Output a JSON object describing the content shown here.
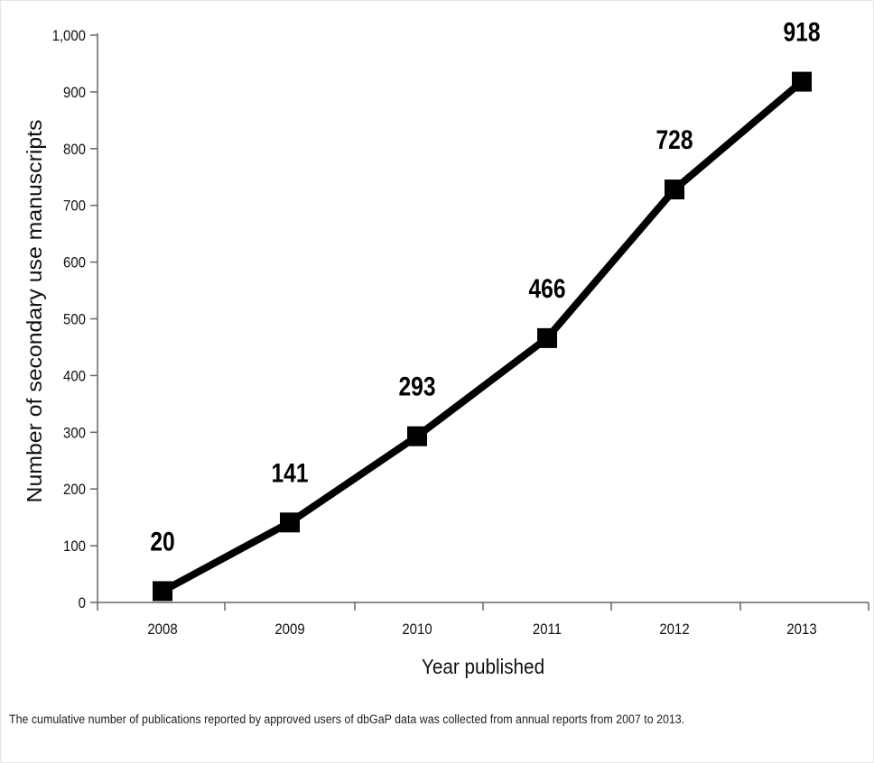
{
  "chart_data": {
    "type": "line",
    "x": [
      "2008",
      "2009",
      "2010",
      "2011",
      "2012",
      "2013"
    ],
    "values": [
      20,
      141,
      293,
      466,
      728,
      918
    ],
    "data_labels": [
      "20",
      "141",
      "293",
      "466",
      "728",
      "918"
    ],
    "xlabel": "Year published",
    "ylabel": "Number of secondary use manuscripts",
    "ylim": [
      0,
      1000
    ],
    "yticks": [
      0,
      100,
      200,
      300,
      400,
      500,
      600,
      700,
      800,
      900,
      1000
    ],
    "ytick_labels": [
      "0",
      "100",
      "200",
      "300",
      "400",
      "500",
      "600",
      "700",
      "800",
      "900",
      "1,000"
    ],
    "marker": "square",
    "line_color": "#000000",
    "grid": false,
    "legend": "none"
  },
  "caption": "The cumulative number of publications reported by approved users of dbGaP data was collected from annual reports from 2007 to 2013."
}
